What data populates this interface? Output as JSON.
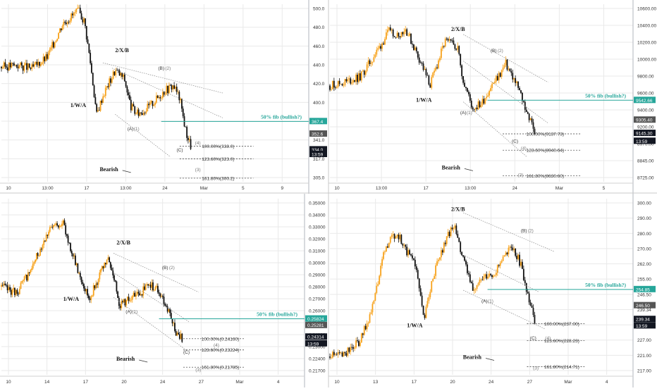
{
  "chart_data": [
    {
      "type": "candlestick",
      "y_ticks": [
        "500.0",
        "480.0",
        "460.0",
        "440.0",
        "420.0",
        "400.0",
        "380.0",
        "341.0",
        "317.0",
        "305.0"
      ],
      "y_range": [
        296,
        506
      ],
      "x_ticks": [
        "10",
        "13:00",
        "17",
        "13:00",
        "24",
        "Mar",
        "5",
        "9"
      ],
      "price_labels": [
        {
          "text": "367.4",
          "y": 367.4,
          "kind": "green"
        },
        {
          "text": "352.6",
          "y": 352.6,
          "kind": "gray"
        },
        {
          "text": "334.0",
          "y": 334.0,
          "kind": "black"
        },
        {
          "text": "13:59",
          "y": 328.5,
          "kind": "black"
        }
      ],
      "fib_levels": [
        {
          "label": "100.00%(338.0)",
          "value": 338.0
        },
        {
          "label": "123.60%(323.0)",
          "value": 323.0
        },
        {
          "label": "161.80%(300.2)",
          "value": 300.2
        }
      ],
      "fib_line": {
        "label": "50% fib (bullish?)",
        "value": 367.4
      },
      "wave_labels": [
        "2/X/B",
        "1/W/A",
        "Bearish",
        "(B)",
        "(2)",
        "(A)",
        "(1)",
        "(C)",
        "(4)",
        "(3)"
      ],
      "path": [
        [
          0,
          432
        ],
        [
          0.05,
          434
        ],
        [
          0.1,
          430
        ],
        [
          0.15,
          444
        ],
        [
          0.2,
          484
        ],
        [
          0.25,
          498
        ],
        [
          0.27,
          486
        ],
        [
          0.29,
          436
        ],
        [
          0.31,
          375
        ],
        [
          0.33,
          398
        ],
        [
          0.37,
          428
        ],
        [
          0.4,
          418
        ],
        [
          0.42,
          386
        ],
        [
          0.44,
          376
        ],
        [
          0.47,
          382
        ],
        [
          0.5,
          392
        ],
        [
          0.53,
          404
        ],
        [
          0.56,
          410
        ],
        [
          0.58,
          395
        ],
        [
          0.6,
          356
        ],
        [
          0.62,
          334
        ]
      ]
    },
    {
      "type": "candlestick",
      "y_ticks": [
        "10600.00",
        "10400.00",
        "10200.00",
        "10000.00",
        "9800.00",
        "9600.00",
        "9400.00",
        "9200.00",
        "8970.00",
        "8845.00",
        "8725.00"
      ],
      "y_range": [
        8560,
        10700
      ],
      "x_ticks": [
        "10",
        "13:00",
        "17",
        "13:00",
        "24",
        "Mar",
        "5"
      ],
      "price_labels": [
        {
          "text": "9542.66",
          "y": 9542.66,
          "kind": "green"
        },
        {
          "text": "9305.40",
          "y": 9305.4,
          "kind": "gray"
        },
        {
          "text": "9145.30",
          "y": 9145.3,
          "kind": "black"
        },
        {
          "text": "13:59",
          "y": 9050,
          "kind": "black"
        }
      ],
      "fib_levels": [
        {
          "label": "100.00%(9137.73)",
          "value": 9137.73
        },
        {
          "label": "123.60%(8940.64)",
          "value": 8940.64
        },
        {
          "label": "161.80%(8630.60)",
          "value": 8630.6
        }
      ],
      "fib_line": {
        "label": "50% fib (bullish?)",
        "value": 9542.66
      },
      "wave_labels": [
        "2/X/B",
        "1/W/A",
        "Bearish",
        "(B)",
        "(2)",
        "(A)",
        "(1)",
        "(C)",
        "(4)",
        "(3)"
      ],
      "path": [
        [
          0,
          9720
        ],
        [
          0.05,
          9760
        ],
        [
          0.1,
          9820
        ],
        [
          0.15,
          10100
        ],
        [
          0.2,
          10400
        ],
        [
          0.22,
          10320
        ],
        [
          0.25,
          10400
        ],
        [
          0.3,
          10000
        ],
        [
          0.33,
          9720
        ],
        [
          0.38,
          10250
        ],
        [
          0.42,
          10200
        ],
        [
          0.44,
          9780
        ],
        [
          0.47,
          9450
        ],
        [
          0.5,
          9500
        ],
        [
          0.53,
          9700
        ],
        [
          0.56,
          9850
        ],
        [
          0.58,
          9980
        ],
        [
          0.62,
          9700
        ],
        [
          0.66,
          9300
        ],
        [
          0.68,
          9145
        ]
      ]
    },
    {
      "type": "candlestick",
      "y_ticks": [
        "0.35000",
        "0.34000",
        "0.33000",
        "0.32000",
        "0.31000",
        "0.30000",
        "0.29000",
        "0.28000",
        "0.27000",
        "0.26000",
        "0.25000",
        "0.24000",
        "0.23000",
        "0.22400",
        "0.21700"
      ],
      "y_range": [
        0.2115,
        0.3585
      ],
      "x_ticks": [
        "10",
        "14",
        "17",
        "20",
        "24",
        "27",
        "Mar",
        "4"
      ],
      "price_labels": [
        {
          "text": "0.25824",
          "y": 0.25824,
          "kind": "green"
        },
        {
          "text": "0.25281",
          "y": 0.25281,
          "kind": "gray"
        },
        {
          "text": "0.24314",
          "y": 0.24314,
          "kind": "black"
        },
        {
          "text": "13:59",
          "y": 0.2375,
          "kind": "black"
        }
      ],
      "fib_levels": [
        {
          "label": "100.00%(0.24160)",
          "value": 0.2416
        },
        {
          "label": "123.60%(0.23224)",
          "value": 0.23224
        },
        {
          "label": "161.80%(0.21785)",
          "value": 0.21785
        }
      ],
      "fib_line": {
        "label": "50% fib (bullish?)",
        "value": 0.25824
      },
      "wave_labels": [
        "2/X/B",
        "1/W/A",
        "Bearish",
        "(B)",
        "(2)",
        "(A)",
        "(1)",
        "(C)",
        "(4)",
        "(3)"
      ],
      "path": [
        [
          0,
          0.285
        ],
        [
          0.05,
          0.28
        ],
        [
          0.1,
          0.3
        ],
        [
          0.15,
          0.33
        ],
        [
          0.2,
          0.34
        ],
        [
          0.25,
          0.3
        ],
        [
          0.29,
          0.275
        ],
        [
          0.31,
          0.287
        ],
        [
          0.35,
          0.308
        ],
        [
          0.37,
          0.295
        ],
        [
          0.39,
          0.27
        ],
        [
          0.42,
          0.275
        ],
        [
          0.45,
          0.278
        ],
        [
          0.49,
          0.287
        ],
        [
          0.52,
          0.281
        ],
        [
          0.55,
          0.265
        ],
        [
          0.58,
          0.245
        ],
        [
          0.6,
          0.2416
        ]
      ]
    },
    {
      "type": "candlestick",
      "y_ticks": [
        "300.00",
        "290.00",
        "280.00",
        "270.00",
        "262.00",
        "255.00",
        "246.50",
        "239.34",
        "233.00",
        "227.00",
        "221.00",
        "217.00"
      ],
      "y_range": [
        210.5,
        302
      ],
      "x_ticks": [
        "10",
        "13",
        "17",
        "20",
        "24",
        "27",
        "Mar",
        "4"
      ],
      "price_labels": [
        {
          "text": "254.85",
          "y": 254.85,
          "kind": "green"
        },
        {
          "text": "246.50",
          "y": 246.5,
          "kind": "gray"
        },
        {
          "text": "239.34",
          "y": 239.34,
          "kind": "black"
        },
        {
          "text": "13:59",
          "y": 236,
          "kind": "black"
        }
      ],
      "fib_levels": [
        {
          "label": "100.00%(237.00)",
          "value": 237.0
        },
        {
          "label": "123.60%(228.23)",
          "value": 228.23
        },
        {
          "label": "161.80%(214.71)",
          "value": 214.71
        }
      ],
      "fib_line": {
        "label": "50% fib (bullish?)",
        "value": 254.85
      },
      "wave_labels": [
        "2/X/B",
        "1/W/A",
        "Bearish",
        "(B)",
        "(2)",
        "(A)",
        "(1)",
        "(C)",
        "(4)",
        "(3)"
      ],
      "path": [
        [
          0,
          220
        ],
        [
          0.05,
          222
        ],
        [
          0.1,
          228
        ],
        [
          0.14,
          245
        ],
        [
          0.18,
          275
        ],
        [
          0.22,
          285
        ],
        [
          0.25,
          275
        ],
        [
          0.28,
          270
        ],
        [
          0.31,
          238
        ],
        [
          0.34,
          262
        ],
        [
          0.38,
          280
        ],
        [
          0.41,
          288
        ],
        [
          0.44,
          270
        ],
        [
          0.47,
          255
        ],
        [
          0.5,
          260
        ],
        [
          0.54,
          263
        ],
        [
          0.57,
          270
        ],
        [
          0.6,
          277
        ],
        [
          0.63,
          268
        ],
        [
          0.66,
          248
        ],
        [
          0.68,
          237
        ]
      ]
    }
  ],
  "colors": {
    "green": "#26a69a",
    "orange": "#f7a21b",
    "grid": "#e9e9e9",
    "black": "#131722",
    "gray": "#555555"
  }
}
